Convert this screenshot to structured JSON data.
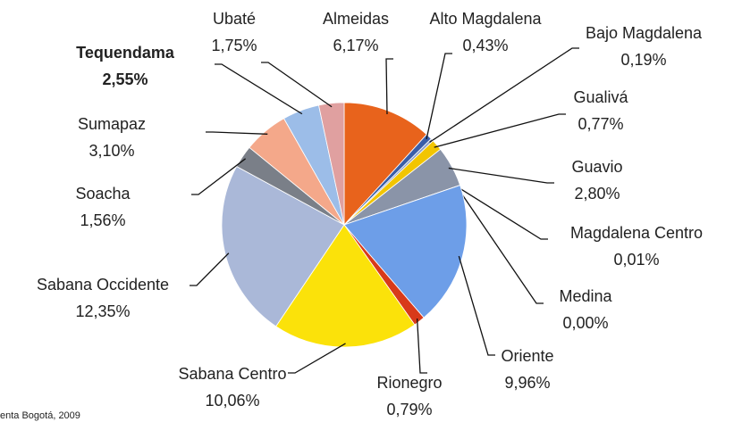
{
  "chart_data": {
    "type": "pie",
    "categories": [
      "Almeidas",
      "Alto Magdalena",
      "Bajo Magdalena",
      "Gualivá",
      "Guavio",
      "Magdalena Centro",
      "Medina",
      "Oriente",
      "Rionegro",
      "Sabana Centro",
      "Sabana Occidente",
      "Soacha",
      "Sumapaz",
      "Tequendama",
      "Ubaté"
    ],
    "values": [
      6.17,
      0.43,
      0.19,
      0.77,
      2.8,
      0.01,
      0.0,
      9.96,
      0.79,
      10.06,
      12.35,
      1.56,
      3.1,
      2.55,
      1.75
    ],
    "value_labels": [
      "6,17%",
      "0,43%",
      "0,19%",
      "0,77%",
      "2,80%",
      "0,01%",
      "0,00%",
      "9,96%",
      "0,79%",
      "10,06%",
      "12,35%",
      "1,56%",
      "3,10%",
      "2,55%",
      "1,75%"
    ],
    "colors": [
      "#e8631c",
      "#3a5ea8",
      "#8fa0c8",
      "#f2c500",
      "#8a94a8",
      "#c0c8d8",
      "#d0d0d0",
      "#6d9ee8",
      "#d83a1a",
      "#fbe20a",
      "#aab8d8",
      "#7a7f88",
      "#f4a88a",
      "#9cbde8",
      "#e0a0a0"
    ],
    "source": "enta Bogotá, 2009"
  }
}
